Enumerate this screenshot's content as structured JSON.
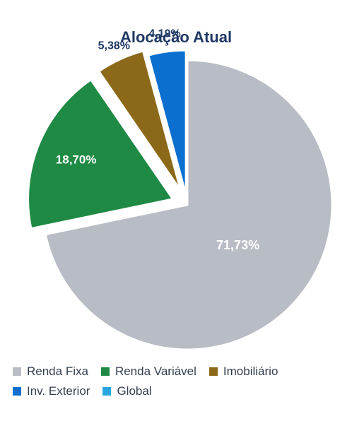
{
  "chart_data": {
    "type": "pie",
    "title": "Alocação Atual",
    "slices": [
      {
        "label": "Renda Fixa",
        "value": 71.73,
        "value_label": "71,73%",
        "color": "#b8bcc4"
      },
      {
        "label": "Renda Variável",
        "value": 18.7,
        "value_label": "18,70%",
        "color": "#1e8a44"
      },
      {
        "label": "Imobiliário",
        "value": 5.38,
        "value_label": "5,38%",
        "color": "#8b6918"
      },
      {
        "label": "Inv. Exterior",
        "value": 4.19,
        "value_label": "4,19%",
        "color": "#0b6fcf"
      },
      {
        "label": "Global",
        "value": 0,
        "value_label": "",
        "color": "#29a6df"
      }
    ],
    "start_angle_deg": 0,
    "direction": "clockwise",
    "exploded_slices": [
      "Renda Variável",
      "Imobiliário",
      "Inv. Exterior"
    ],
    "legend_position": "bottom"
  },
  "colors": {
    "title": "#1f3864",
    "inside_label": "#ffffff",
    "outside_label": "#1f3864"
  }
}
